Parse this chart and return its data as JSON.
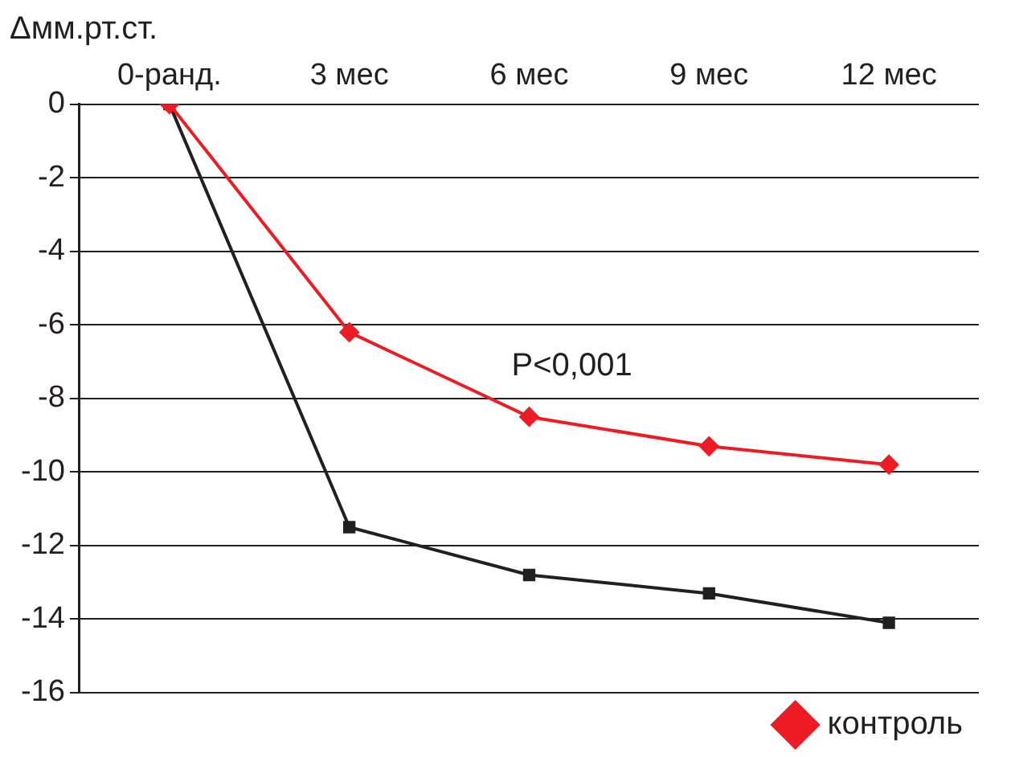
{
  "chart_data": {
    "type": "line",
    "ylabel": "Δмм.рт.ст.",
    "categories": [
      "0-ранд.",
      "3 мес",
      "6 мес",
      "9 мес",
      "12 мес"
    ],
    "series": [
      {
        "name": "контроль",
        "color": "#ed1c24",
        "marker": "diamond",
        "values": [
          0,
          -6.2,
          -8.5,
          -9.3,
          -9.8
        ]
      },
      {
        "color": "#231f20",
        "marker": "square",
        "values": [
          0,
          -11.5,
          -12.8,
          -13.3,
          -14.1
        ]
      }
    ],
    "ylim": [
      -16,
      0
    ],
    "yticks": [
      0,
      -2,
      -4,
      -6,
      -8,
      -10,
      -12,
      -14,
      -16
    ],
    "grid": "y",
    "legend": "bottom",
    "annotations": [
      "P<0,001"
    ]
  }
}
